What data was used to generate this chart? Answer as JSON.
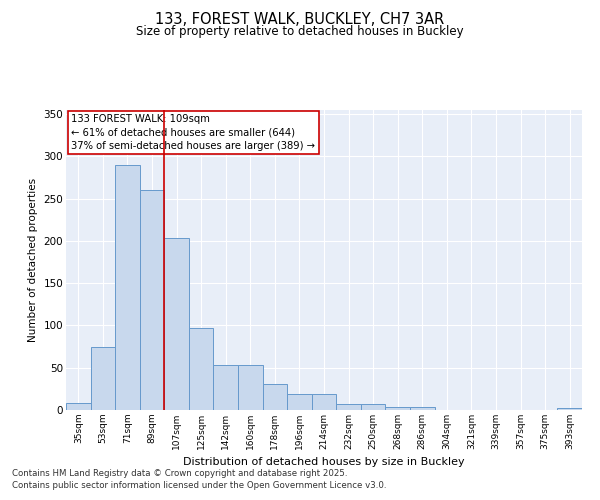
{
  "title": "133, FOREST WALK, BUCKLEY, CH7 3AR",
  "subtitle": "Size of property relative to detached houses in Buckley",
  "xlabel": "Distribution of detached houses by size in Buckley",
  "ylabel": "Number of detached properties",
  "bar_color": "#c8d8ed",
  "bar_edge_color": "#6699cc",
  "background_color": "#e8eef8",
  "categories": [
    "35sqm",
    "53sqm",
    "71sqm",
    "89sqm",
    "107sqm",
    "125sqm",
    "142sqm",
    "160sqm",
    "178sqm",
    "196sqm",
    "214sqm",
    "232sqm",
    "250sqm",
    "268sqm",
    "286sqm",
    "304sqm",
    "321sqm",
    "339sqm",
    "357sqm",
    "375sqm",
    "393sqm"
  ],
  "values": [
    8,
    75,
    290,
    260,
    204,
    97,
    53,
    53,
    31,
    19,
    19,
    7,
    7,
    4,
    4,
    0,
    0,
    0,
    0,
    0,
    2
  ],
  "ylim": [
    0,
    355
  ],
  "yticks": [
    0,
    50,
    100,
    150,
    200,
    250,
    300,
    350
  ],
  "vline_index": 4,
  "annotation_text": "133 FOREST WALK: 109sqm\n← 61% of detached houses are smaller (644)\n37% of semi-detached houses are larger (389) →",
  "annotation_box_color": "#ffffff",
  "annotation_box_edge_color": "#cc0000",
  "vline_color": "#cc0000",
  "footer_line1": "Contains HM Land Registry data © Crown copyright and database right 2025.",
  "footer_line2": "Contains public sector information licensed under the Open Government Licence v3.0."
}
